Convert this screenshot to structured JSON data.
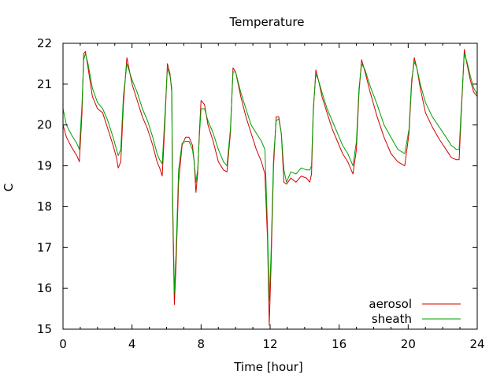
{
  "chart_data": {
    "type": "line",
    "title": "Temperature",
    "xlabel": "Time [hour]",
    "ylabel": "C",
    "xlim": [
      0,
      24
    ],
    "ylim": [
      15,
      22
    ],
    "xticks": [
      0,
      4,
      8,
      12,
      16,
      20,
      24
    ],
    "yticks": [
      15,
      16,
      17,
      18,
      19,
      20,
      21,
      22
    ],
    "grid": false,
    "legend_position": "bottom-right",
    "series": [
      {
        "name": "aerosol",
        "color": "#d40000",
        "x": [
          0,
          0.2,
          0.5,
          0.8,
          0.95,
          1.1,
          1.2,
          1.3,
          1.45,
          1.7,
          2.0,
          2.3,
          2.6,
          2.9,
          3.1,
          3.2,
          3.35,
          3.5,
          3.7,
          4.0,
          4.3,
          4.6,
          4.9,
          5.2,
          5.45,
          5.6,
          5.75,
          5.9,
          6.05,
          6.2,
          6.3,
          6.35,
          6.45,
          6.55,
          6.7,
          6.9,
          7.1,
          7.3,
          7.5,
          7.6,
          7.7,
          7.8,
          7.9,
          8.0,
          8.2,
          8.4,
          8.7,
          9.0,
          9.3,
          9.5,
          9.7,
          9.85,
          10.0,
          10.3,
          10.6,
          10.9,
          11.2,
          11.5,
          11.7,
          11.85,
          11.95,
          12.05,
          12.2,
          12.35,
          12.5,
          12.65,
          12.8,
          12.95,
          13.2,
          13.5,
          13.8,
          14.1,
          14.3,
          14.4,
          14.5,
          14.65,
          14.8,
          15.0,
          15.3,
          15.6,
          15.9,
          16.2,
          16.5,
          16.8,
          17.0,
          17.15,
          17.3,
          17.5,
          17.8,
          18.2,
          18.6,
          19.0,
          19.4,
          19.8,
          20.05,
          20.2,
          20.35,
          20.5,
          20.7,
          21.0,
          21.4,
          21.8,
          22.2,
          22.5,
          22.8,
          22.95,
          23.1,
          23.25,
          23.4,
          23.6,
          23.8,
          24.0
        ],
        "y": [
          20.0,
          19.7,
          19.45,
          19.25,
          19.1,
          20.3,
          21.75,
          21.8,
          21.4,
          20.7,
          20.4,
          20.3,
          19.9,
          19.5,
          19.2,
          18.95,
          19.1,
          20.5,
          21.65,
          21.0,
          20.6,
          20.2,
          19.9,
          19.5,
          19.1,
          18.95,
          18.75,
          20.0,
          21.5,
          21.25,
          20.8,
          18.0,
          15.6,
          16.6,
          18.6,
          19.5,
          19.7,
          19.7,
          19.5,
          19.1,
          18.35,
          18.8,
          19.8,
          20.6,
          20.5,
          20.0,
          19.6,
          19.1,
          18.9,
          18.85,
          19.8,
          21.4,
          21.3,
          20.7,
          20.2,
          19.8,
          19.4,
          19.1,
          18.8,
          17.2,
          15.1,
          16.5,
          19.0,
          20.2,
          20.2,
          19.8,
          18.6,
          18.55,
          18.7,
          18.6,
          18.75,
          18.7,
          18.6,
          18.8,
          20.3,
          21.35,
          21.1,
          20.7,
          20.3,
          19.9,
          19.6,
          19.3,
          19.1,
          18.8,
          19.4,
          20.8,
          21.6,
          21.3,
          20.8,
          20.2,
          19.7,
          19.3,
          19.1,
          19.0,
          19.8,
          21.0,
          21.65,
          21.4,
          20.9,
          20.3,
          19.95,
          19.65,
          19.4,
          19.2,
          19.15,
          19.15,
          20.5,
          21.85,
          21.5,
          21.1,
          20.8,
          20.7
        ]
      },
      {
        "name": "sheath",
        "color": "#00a000",
        "x": [
          0,
          0.2,
          0.5,
          0.8,
          0.95,
          1.1,
          1.2,
          1.3,
          1.45,
          1.7,
          2.0,
          2.3,
          2.6,
          2.9,
          3.1,
          3.2,
          3.35,
          3.5,
          3.7,
          4.0,
          4.3,
          4.6,
          4.9,
          5.2,
          5.45,
          5.6,
          5.75,
          5.9,
          6.05,
          6.2,
          6.3,
          6.35,
          6.45,
          6.55,
          6.7,
          6.9,
          7.1,
          7.3,
          7.5,
          7.6,
          7.7,
          7.8,
          7.9,
          8.0,
          8.2,
          8.4,
          8.7,
          9.0,
          9.3,
          9.5,
          9.7,
          9.85,
          10.0,
          10.3,
          10.6,
          10.9,
          11.2,
          11.5,
          11.7,
          11.85,
          11.95,
          12.05,
          12.2,
          12.35,
          12.5,
          12.65,
          12.8,
          12.95,
          13.2,
          13.5,
          13.8,
          14.1,
          14.3,
          14.4,
          14.5,
          14.65,
          14.8,
          15.0,
          15.3,
          15.6,
          15.9,
          16.2,
          16.5,
          16.8,
          17.0,
          17.15,
          17.3,
          17.5,
          17.8,
          18.2,
          18.6,
          19.0,
          19.4,
          19.8,
          20.05,
          20.2,
          20.35,
          20.5,
          20.7,
          21.0,
          21.4,
          21.8,
          22.2,
          22.5,
          22.8,
          22.95,
          23.1,
          23.25,
          23.4,
          23.6,
          23.8,
          24.0
        ],
        "y": [
          20.4,
          20.0,
          19.75,
          19.55,
          19.4,
          20.5,
          21.6,
          21.75,
          21.5,
          20.9,
          20.55,
          20.4,
          20.1,
          19.7,
          19.4,
          19.25,
          19.4,
          20.7,
          21.5,
          21.1,
          20.8,
          20.4,
          20.1,
          19.7,
          19.3,
          19.15,
          19.05,
          20.2,
          21.4,
          21.2,
          20.9,
          18.3,
          15.9,
          16.9,
          18.9,
          19.55,
          19.6,
          19.6,
          19.4,
          19.1,
          18.6,
          18.9,
          19.7,
          20.4,
          20.4,
          20.1,
          19.8,
          19.4,
          19.1,
          19.0,
          19.9,
          21.3,
          21.3,
          20.8,
          20.4,
          20.0,
          19.8,
          19.6,
          19.4,
          17.5,
          15.7,
          16.8,
          19.2,
          20.1,
          20.15,
          19.8,
          18.9,
          18.6,
          18.85,
          18.8,
          18.95,
          18.9,
          18.9,
          19.0,
          20.4,
          21.25,
          21.1,
          20.8,
          20.4,
          20.1,
          19.8,
          19.5,
          19.3,
          19.0,
          19.6,
          20.9,
          21.5,
          21.35,
          20.95,
          20.5,
          20.0,
          19.7,
          19.4,
          19.3,
          19.9,
          21.1,
          21.55,
          21.4,
          21.0,
          20.55,
          20.2,
          19.95,
          19.7,
          19.5,
          19.4,
          19.4,
          20.6,
          21.75,
          21.55,
          21.2,
          20.9,
          20.75
        ]
      }
    ]
  }
}
